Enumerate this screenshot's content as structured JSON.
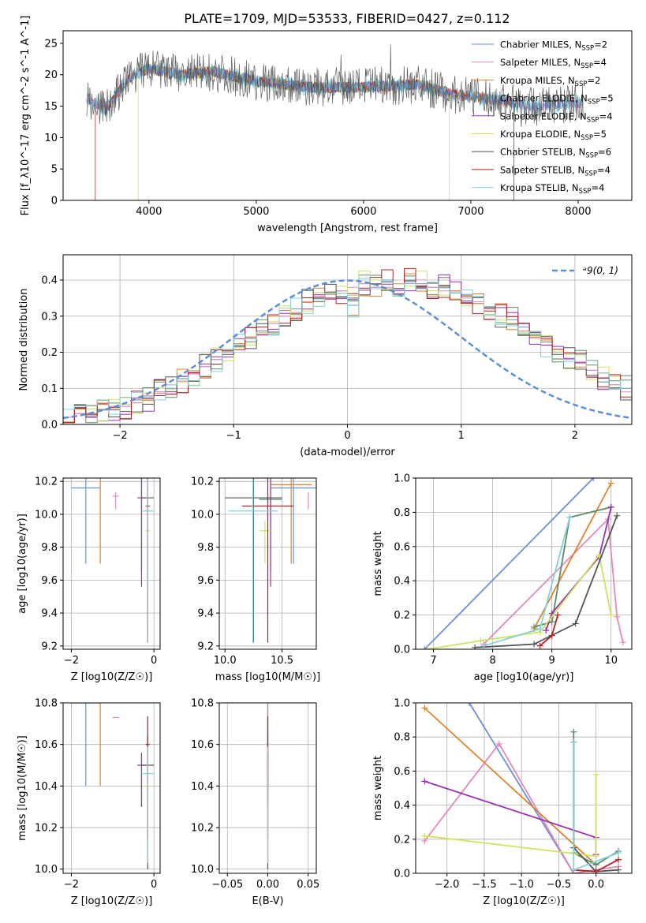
{
  "figure_title": "PLATE=1709, MJD=53533, FIBERID=0427, z=0.112",
  "legend": {
    "spectrum": [
      {
        "name": "Chabrier MILES",
        "n": "2",
        "color": "#6a8fdd"
      },
      {
        "name": "Salpeter MILES",
        "n": "4",
        "color": "#e389bb"
      },
      {
        "name": "Kroupa MILES",
        "n": "2",
        "color": "#e0822a"
      },
      {
        "name": "Chabrier ELODIE",
        "n": "5",
        "color": "#5e8c6a"
      },
      {
        "name": "Salpeter ELODIE",
        "n": "4",
        "color": "#9b30b0"
      },
      {
        "name": "Kroupa ELODIE",
        "n": "5",
        "color": "#cbe55a"
      },
      {
        "name": "Chabrier STELIB",
        "n": "6",
        "color": "#555555"
      },
      {
        "name": "Salpeter STELIB",
        "n": "4",
        "color": "#b22222"
      },
      {
        "name": "Kroupa STELIB",
        "n": "4",
        "color": "#83d2d8"
      }
    ],
    "histogram": "ᵊ9(0, 1)"
  },
  "chart_data": [
    {
      "id": "spectrum",
      "type": "line",
      "xlabel": "wavelength [Angstrom, rest frame]",
      "ylabel": "Flux [f_λ10^-17 erg cm^-2 s^-1 A^-1]",
      "xlim": [
        3200,
        8500
      ],
      "ylim": [
        0,
        27
      ],
      "xticks": [
        "4000",
        "5000",
        "6000",
        "7000",
        "8000"
      ],
      "yticks": [
        "0",
        "5",
        "10",
        "15",
        "20",
        "25"
      ],
      "continuum": [
        [
          3400,
          16.5
        ],
        [
          3600,
          14.5
        ],
        [
          3750,
          18
        ],
        [
          3850,
          20
        ],
        [
          4000,
          21
        ],
        [
          4300,
          20
        ],
        [
          4600,
          20.5
        ],
        [
          5000,
          19
        ],
        [
          5500,
          18
        ],
        [
          6000,
          18
        ],
        [
          6500,
          18.5
        ],
        [
          6800,
          17
        ],
        [
          7200,
          16
        ],
        [
          7600,
          15
        ],
        [
          8000,
          15.5
        ]
      ],
      "data_range": [
        3420,
        8050
      ],
      "model_ranges": [
        {
          "series": "Salpeter STELIB",
          "start": 3500,
          "end": 7400,
          "drop_start": 3500,
          "drop_end": 7400
        },
        {
          "series": "Kroupa MILES",
          "start": 3530,
          "end": 7400
        },
        {
          "series": "Salpeter ELODIE",
          "start": 3900,
          "end": 6800
        },
        {
          "series": "Kroupa ELODIE",
          "start": 3900,
          "end": 6800,
          "drop_start": 3900,
          "drop_end": 6800
        },
        {
          "series": "Chabrier ELODIE",
          "start": 3900,
          "end": 6800
        },
        {
          "series": "Chabrier STELIB",
          "start": 3420,
          "end": 8050
        }
      ]
    },
    {
      "id": "residual_hist",
      "type": "line",
      "xlabel": "(data-model)/error",
      "ylabel": "Normed distribution",
      "xlim": [
        -2.5,
        2.5
      ],
      "ylim": [
        0,
        0.47
      ],
      "xticks": [
        "−2",
        "−1",
        "0",
        "1",
        "2"
      ],
      "yticks": [
        "0.0",
        "0.1",
        "0.2",
        "0.3",
        "0.4"
      ],
      "bin_width": 0.1,
      "series": [
        {
          "name": "Chabrier MILES",
          "values": [
            0.02,
            0.03,
            0.03,
            0.04,
            0.04,
            0.05,
            0.06,
            0.07,
            0.09,
            0.1,
            0.12,
            0.14,
            0.16,
            0.18,
            0.2,
            0.22,
            0.24,
            0.26,
            0.28,
            0.3,
            0.32,
            0.34,
            0.35,
            0.36,
            0.37,
            0.33,
            0.39,
            0.38,
            0.4,
            0.36,
            0.4,
            0.39,
            0.38,
            0.38,
            0.37,
            0.36,
            0.34,
            0.32,
            0.3,
            0.29,
            0.27,
            0.25,
            0.22,
            0.2,
            0.18,
            0.17,
            0.15,
            0.13,
            0.11,
            0.1
          ]
        },
        {
          "name": "Kroupa STELIB",
          "values": [
            0.02,
            0.03,
            0.03,
            0.04,
            0.05,
            0.05,
            0.06,
            0.08,
            0.09,
            0.11,
            0.12,
            0.14,
            0.16,
            0.18,
            0.2,
            0.22,
            0.24,
            0.26,
            0.28,
            0.3,
            0.31,
            0.34,
            0.36,
            0.36,
            0.37,
            0.38,
            0.39,
            0.38,
            0.38,
            0.37,
            0.39,
            0.4,
            0.38,
            0.37,
            0.37,
            0.35,
            0.34,
            0.32,
            0.3,
            0.28,
            0.26,
            0.24,
            0.22,
            0.2,
            0.18,
            0.17,
            0.15,
            0.13,
            0.11,
            0.09
          ]
        }
      ],
      "normal_curve": {
        "mean": 0,
        "sigma": 1
      }
    },
    {
      "id": "age_vs_Z",
      "type": "scatter",
      "xlabel": "Z [log10(Z/Z☉)]",
      "ylabel": "age  [log10(age/yr)]",
      "xlim": [
        -2.2,
        0.15
      ],
      "ylim": [
        9.18,
        10.22
      ],
      "xticks": [
        "−2",
        "0"
      ],
      "yticks": [
        "9.2",
        "9.4",
        "9.6",
        "9.8",
        "10.0",
        "10.2"
      ]
    },
    {
      "id": "age_vs_mass",
      "type": "scatter",
      "xlabel": "mass [log10(M/M☉)]",
      "ylabel": "",
      "xlim": [
        9.95,
        10.8
      ],
      "ylim": [
        9.18,
        10.22
      ],
      "xticks": [
        "10.0",
        "10.5"
      ],
      "yticks": [
        "9.2",
        "9.4",
        "9.6",
        "9.8",
        "10.0",
        "10.2"
      ]
    },
    {
      "id": "mass_weight_vs_age",
      "type": "line",
      "xlabel": "age  [log10(age/yr)]",
      "ylabel": "mass weight",
      "xlim": [
        6.7,
        10.35
      ],
      "ylim": [
        0,
        1.0
      ],
      "xticks": [
        "7",
        "8",
        "9",
        "10"
      ],
      "yticks": [
        "0.0",
        "0.2",
        "0.4",
        "0.6",
        "0.8",
        "1.0"
      ]
    },
    {
      "id": "mass_vs_Z",
      "type": "scatter",
      "xlabel": "Z [log10(Z/Z☉)]",
      "ylabel": "mass [log10(M/M☉)]",
      "xlim": [
        -2.2,
        0.15
      ],
      "ylim": [
        9.98,
        10.8
      ],
      "xticks": [
        "−2",
        "0"
      ],
      "yticks": [
        "10.0",
        "10.2",
        "10.4",
        "10.6",
        "10.8"
      ]
    },
    {
      "id": "mass_vs_ebv",
      "type": "scatter",
      "xlabel": "E(B-V)",
      "ylabel": "",
      "xlim": [
        -0.06,
        0.06
      ],
      "ylim": [
        9.98,
        10.8
      ],
      "xticks": [
        "−0.05",
        "0.00",
        "0.05"
      ],
      "yticks": [
        "10.0",
        "10.2",
        "10.4",
        "10.6",
        "10.8"
      ]
    },
    {
      "id": "mass_weight_vs_Z",
      "type": "line",
      "xlabel": "Z [log10(Z/Z☉)]",
      "ylabel": "mass weight",
      "xlim": [
        -2.42,
        0.48
      ],
      "ylim": [
        0,
        1.0
      ],
      "xticks": [
        "−2.0",
        "−1.5",
        "−1.0",
        "−0.5",
        "0.0"
      ],
      "yticks": [
        "0.0",
        "0.2",
        "0.4",
        "0.6",
        "0.8",
        "1.0"
      ]
    }
  ],
  "best_fits": [
    {
      "series": "Chabrier MILES",
      "age": [
        9.7,
        10.16
      ],
      "Z": [
        -2.0,
        -1.3
      ],
      "mass": [
        10.4,
        10.8
      ],
      "ebv": 0.0
    },
    {
      "series": "Salpeter MILES",
      "age": [
        10.03,
        10.11
      ],
      "Z": [
        -1.0,
        -0.85
      ],
      "mass": [
        10.73,
        10.73
      ],
      "ebv": 0.0
    },
    {
      "series": "Kroupa MILES",
      "age": [
        9.7,
        10.18
      ],
      "Z": [
        -1.3,
        -1.3
      ],
      "mass": [
        10.4,
        10.76
      ],
      "ebv": 0.0
    },
    {
      "series": "Chabrier ELODIE",
      "age": [
        9.65,
        10.09
      ],
      "Z": [
        -0.3,
        -0.3
      ],
      "mass": [
        10.3,
        10.5
      ],
      "ebv": 0.0
    },
    {
      "series": "Salpeter ELODIE",
      "age": [
        9.56,
        10.1
      ],
      "Z": [
        -0.4,
        -0.2
      ],
      "mass": [
        10.3,
        10.5
      ],
      "ebv": 0.0
    },
    {
      "series": "Kroupa ELODIE",
      "age": [
        9.7,
        9.9
      ],
      "Z": [
        -0.2,
        -0.1
      ],
      "mass": [
        10.3,
        10.4
      ],
      "ebv": 0.0
    },
    {
      "series": "Chabrier STELIB",
      "age": [
        9.22,
        10.1
      ],
      "Z": [
        -0.3,
        0.0
      ],
      "mass": [
        10.0,
        10.5
      ],
      "ebv": 0.0
    },
    {
      "series": "Salpeter STELIB",
      "age": [
        9.22,
        10.05
      ],
      "Z": [
        -0.2,
        -0.1
      ],
      "mass": [
        10.15,
        10.6
      ],
      "ebv": 0.0
    },
    {
      "series": "Kroupa STELIB",
      "age": [
        9.22,
        10.02
      ],
      "Z": [
        -0.3,
        0.0
      ],
      "mass": [
        10.03,
        10.46
      ],
      "ebv": 0.0
    }
  ],
  "weights_vs_age": [
    {
      "series": "Chabrier MILES",
      "points": [
        [
          6.85,
          0.0
        ],
        [
          9.7,
          1.0
        ]
      ]
    },
    {
      "series": "Salpeter MILES",
      "points": [
        [
          7.85,
          0.03
        ],
        [
          9.95,
          0.76
        ],
        [
          10.1,
          0.19
        ],
        [
          10.2,
          0.04
        ]
      ]
    },
    {
      "series": "Kroupa MILES",
      "points": [
        [
          8.7,
          0.12
        ],
        [
          10.0,
          0.97
        ]
      ]
    },
    {
      "series": "Chabrier ELODIE",
      "points": [
        [
          8.7,
          0.13
        ],
        [
          9.0,
          0.16
        ],
        [
          9.3,
          0.77
        ],
        [
          10.0,
          0.83
        ]
      ]
    },
    {
      "series": "Salpeter ELODIE",
      "points": [
        [
          8.9,
          0.11
        ],
        [
          9.0,
          0.21
        ],
        [
          9.8,
          0.54
        ],
        [
          10.0,
          0.83
        ]
      ]
    },
    {
      "series": "Kroupa ELODIE",
      "points": [
        [
          6.9,
          0.0
        ],
        [
          7.8,
          0.05
        ],
        [
          8.8,
          0.1
        ],
        [
          9.8,
          0.55
        ],
        [
          10.0,
          0.2
        ]
      ]
    },
    {
      "series": "Chabrier STELIB",
      "points": [
        [
          7.7,
          0.01
        ],
        [
          8.7,
          0.03
        ],
        [
          9.4,
          0.15
        ],
        [
          10.1,
          0.78
        ]
      ]
    },
    {
      "series": "Salpeter STELIB",
      "points": [
        [
          8.8,
          0.02
        ],
        [
          9.0,
          0.08
        ],
        [
          9.1,
          0.2
        ]
      ]
    },
    {
      "series": "Kroupa STELIB",
      "points": [
        [
          7.85,
          0.02
        ],
        [
          8.8,
          0.12
        ],
        [
          9.3,
          0.77
        ]
      ]
    }
  ],
  "weights_vs_Z": [
    {
      "series": "Chabrier MILES",
      "points": [
        [
          -1.7,
          1.0
        ],
        [
          -0.3,
          0.0
        ]
      ]
    },
    {
      "series": "Salpeter MILES",
      "points": [
        [
          -2.3,
          0.19
        ],
        [
          -1.3,
          0.76
        ],
        [
          -0.3,
          0.0
        ],
        [
          0.3,
          0.04
        ]
      ]
    },
    {
      "series": "Kroupa MILES",
      "points": [
        [
          -2.3,
          0.97
        ],
        [
          0.0,
          0.05
        ]
      ]
    },
    {
      "series": "Chabrier ELODIE",
      "points": [
        [
          -0.3,
          0.83
        ],
        [
          -0.3,
          0.12
        ],
        [
          0.0,
          0.05
        ],
        [
          0.3,
          0.13
        ]
      ]
    },
    {
      "series": "Salpeter ELODIE",
      "points": [
        [
          -2.3,
          0.54
        ],
        [
          0.0,
          0.21
        ],
        [
          0.0,
          0.11
        ]
      ]
    },
    {
      "series": "Kroupa ELODIE",
      "points": [
        [
          -2.3,
          0.22
        ],
        [
          0.0,
          0.1
        ],
        [
          0.0,
          0.58
        ]
      ]
    },
    {
      "series": "Chabrier STELIB",
      "points": [
        [
          -0.3,
          0.77
        ],
        [
          -0.3,
          0.15
        ],
        [
          0.0,
          0.01
        ],
        [
          0.3,
          0.02
        ]
      ]
    },
    {
      "series": "Salpeter STELIB",
      "points": [
        [
          -0.3,
          0.02
        ],
        [
          0.0,
          0.01
        ],
        [
          0.3,
          0.08
        ]
      ]
    },
    {
      "series": "Kroupa STELIB",
      "points": [
        [
          -0.3,
          0.77
        ],
        [
          -0.3,
          0.02
        ],
        [
          0.3,
          0.12
        ]
      ]
    }
  ]
}
